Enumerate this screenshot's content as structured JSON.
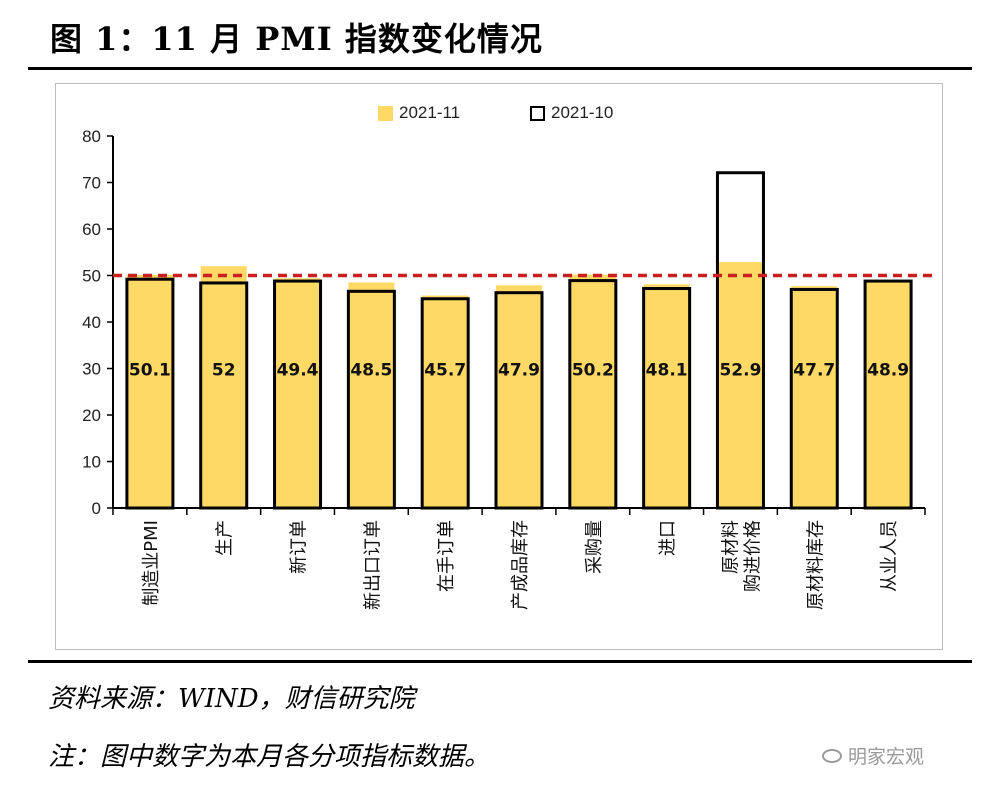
{
  "title": "图 1：11 月 PMI 指数变化情况",
  "source": "资料来源：WIND，财信研究院",
  "note": "注：图中数字为本月各分项指标数据。",
  "watermark": "明家宏观",
  "chart_data": {
    "type": "bar",
    "categories": [
      "制造业PMI",
      "生产",
      "新订单",
      "新出口订单",
      "在手订单",
      "产成品库存",
      "采购量",
      "进口",
      "原材料购进价格",
      "原材料库存",
      "从业人员"
    ],
    "category_lines": [
      [
        "制造业PMI"
      ],
      [
        "生产"
      ],
      [
        "新订单"
      ],
      [
        "新出口订单"
      ],
      [
        "在手订单"
      ],
      [
        "产成品库存"
      ],
      [
        "采购量"
      ],
      [
        "进口"
      ],
      [
        "原材料",
        "购进价格"
      ],
      [
        "原材料库存"
      ],
      [
        "从业人员"
      ]
    ],
    "series": [
      {
        "name": "2021-11",
        "values": [
          50.1,
          52,
          49.4,
          48.5,
          45.7,
          47.9,
          50.2,
          48.1,
          52.9,
          47.7,
          48.9
        ],
        "color": "#ffd966",
        "style": "filled"
      },
      {
        "name": "2021-10",
        "values": [
          49.2,
          48.4,
          48.8,
          46.6,
          45.0,
          46.3,
          48.9,
          47.2,
          72.1,
          47.0,
          48.8
        ],
        "color": "#000000",
        "style": "outline"
      }
    ],
    "data_labels": [
      "50.1",
      "52",
      "49.4",
      "48.5",
      "45.7",
      "47.9",
      "50.2",
      "48.1",
      "52.9",
      "47.7",
      "48.9"
    ],
    "reference_line": {
      "value": 50,
      "color": "#cc1f1f",
      "style": "dashed"
    },
    "ylim": [
      0,
      80
    ],
    "yticks": [
      0,
      10,
      20,
      30,
      40,
      50,
      60,
      70,
      80
    ],
    "xlabel": "",
    "ylabel": "",
    "legend": "top-center",
    "grid": false
  }
}
